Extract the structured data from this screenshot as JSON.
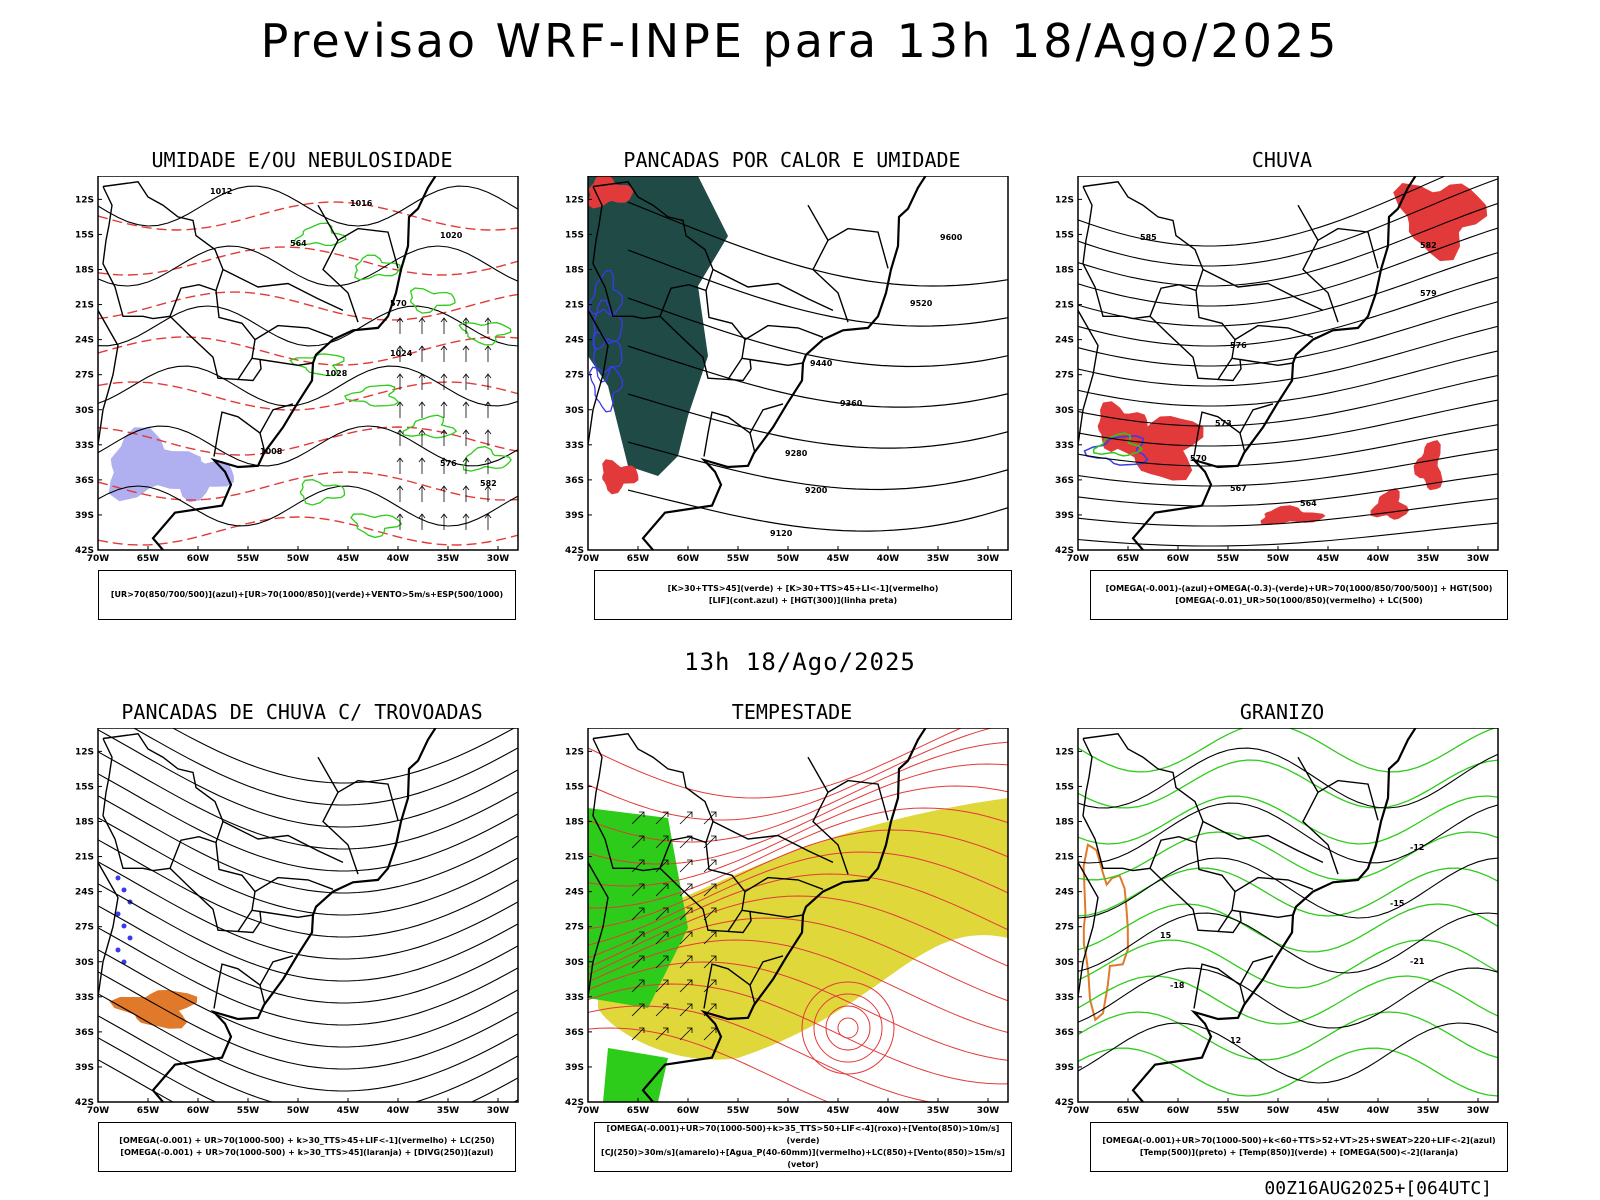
{
  "title": "Previsao WRF-INPE  para 13h 18/Ago/2025",
  "mid_time": "13h 18/Ago/2025",
  "footer_code": "00Z16AUG2025+[064UTC]",
  "axes": {
    "lat_labels": [
      "12S",
      "15S",
      "18S",
      "21S",
      "24S",
      "27S",
      "30S",
      "33S",
      "36S",
      "39S",
      "42S"
    ],
    "lon_labels": [
      "70W",
      "65W",
      "60W",
      "55W",
      "50W",
      "45W",
      "40W",
      "35W",
      "30W"
    ]
  },
  "panels": [
    {
      "title": "UMIDADE E/OU NEBULOSIDADE",
      "legend": [
        "[UR>70(850/700/500)](azul)+[UR>70(1000/850)](verde)+VENTO>5m/s+ESP(500/1000)"
      ],
      "contour_labels": [
        "1012",
        "1016",
        "1020",
        "1024",
        "1028",
        "1008",
        "564",
        "570",
        "576",
        "582"
      ]
    },
    {
      "title": "PANCADAS POR CALOR E UMIDADE",
      "legend": [
        "[K>30+TTS>45](verde) + [K>30+TTS>45+LI<-1](vermelho)",
        "[LIF](cont.azul) + [HGT(300)](linha preta)"
      ],
      "contour_labels": [
        "9600",
        "9520",
        "9440",
        "9360",
        "9280",
        "9200",
        "9120"
      ]
    },
    {
      "title": "CHUVA",
      "legend": [
        "[OMEGA(-0.001)-(azul)+OMEGA(-0.3)-(verde)+UR>70(1000/850/700/500)] + HGT(500)",
        "[OMEGA(-0.01)_UR>50(1000/850)(vermelho) + LC(500)"
      ],
      "contour_labels": [
        "585",
        "582",
        "579",
        "576",
        "573",
        "570",
        "567",
        "564"
      ]
    },
    {
      "title": "PANCADAS DE CHUVA C/ TROVOADAS",
      "legend": [
        "[OMEGA(-0.001) + UR>70(1000-500) + k>30_TTS>45+LIF<-1](vermelho) + LC(250)",
        "[OMEGA(-0.001) + UR>70(1000-500) + k>30_TTS>45](laranja) + [DIVG(250)](azul)"
      ],
      "contour_labels": []
    },
    {
      "title": "TEMPESTADE",
      "legend": [
        "[OMEGA(-0.001)+UR>70(1000-500)+k>35_TTS>50+LIF<-4](roxo)+[Vento(850)>10m/s](verde)",
        "[CJ(250)>30m/s](amarelo)+[Agua_P(40-60mm)](vermelho)+LC(850)+[Vento(850)>15m/s](vetor)"
      ],
      "contour_labels": []
    },
    {
      "title": "GRANIZO",
      "legend": [
        "[OMEGA(-0.001)+UR>70(1000-500)+k<60+TTS>52+VT>25+SWEAT>220+LIF<-2](azul)",
        "[Temp(500)](preto) + [Temp(850)](verde) + [OMEGA(500)<-2](laranja)"
      ],
      "contour_labels": [
        "-12",
        "-15",
        "-18",
        "-21",
        "12",
        "15"
      ]
    }
  ],
  "colors": {
    "red": "#e23a3a",
    "green": "#2ecc1a",
    "blue": "#3a3ae8",
    "lavender": "#b0b0f0",
    "teal": "#1f4a46",
    "yellow": "#e0d83a",
    "orange": "#e07a2a"
  }
}
